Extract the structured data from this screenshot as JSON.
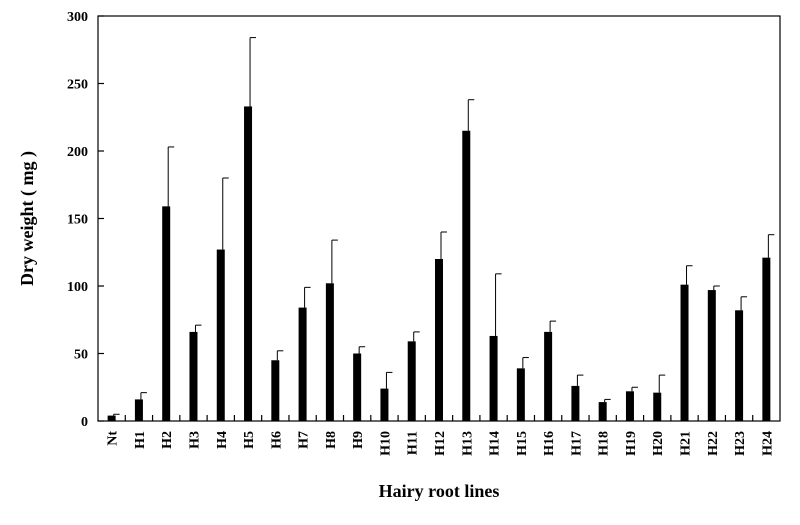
{
  "chart_data": {
    "type": "bar",
    "title": "",
    "xlabel": "Hairy root lines",
    "ylabel": "Dry weight ( mg )",
    "ylim": [
      0,
      300
    ],
    "yticks": [
      0,
      50,
      100,
      150,
      200,
      250,
      300
    ],
    "grid": false,
    "categories": [
      "Nt",
      "H1",
      "H2",
      "H3",
      "H4",
      "H5",
      "H6",
      "H7",
      "H8",
      "H9",
      "H10",
      "H11",
      "H12",
      "H13",
      "H14",
      "H15",
      "H16",
      "H17",
      "H18",
      "H19",
      "H20",
      "H21",
      "H22",
      "H23",
      "H24"
    ],
    "values": [
      4,
      16,
      159,
      66,
      127,
      233,
      45,
      84,
      102,
      50,
      24,
      59,
      120,
      215,
      63,
      39,
      66,
      26,
      14,
      22,
      21,
      101,
      97,
      82,
      121
    ],
    "errors": [
      1,
      5,
      44,
      5,
      53,
      51,
      7,
      15,
      32,
      5,
      12,
      7,
      20,
      23,
      46,
      8,
      8,
      8,
      2,
      3,
      13,
      14,
      3,
      10,
      17
    ],
    "colors": {
      "bar": "#000000",
      "axis": "#000000"
    }
  }
}
